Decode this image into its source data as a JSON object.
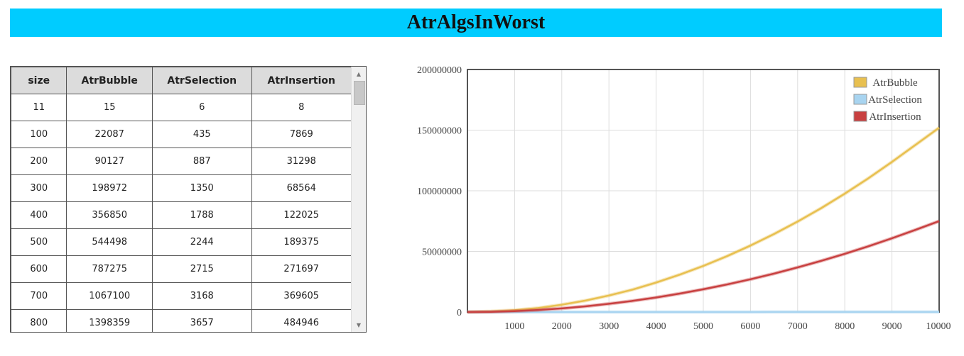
{
  "page": {
    "title": "AtrAlgsInWorst"
  },
  "table": {
    "headers": [
      "size",
      "AtrBubble",
      "AtrSelection",
      "AtrInsertion"
    ],
    "rows": [
      [
        "11",
        "15",
        "6",
        "8"
      ],
      [
        "100",
        "22087",
        "435",
        "7869"
      ],
      [
        "200",
        "90127",
        "887",
        "31298"
      ],
      [
        "300",
        "198972",
        "1350",
        "68564"
      ],
      [
        "400",
        "356850",
        "1788",
        "122025"
      ],
      [
        "500",
        "544498",
        "2244",
        "189375"
      ],
      [
        "600",
        "787275",
        "2715",
        "271697"
      ],
      [
        "700",
        "1067100",
        "3168",
        "369605"
      ],
      [
        "800",
        "1398359",
        "3657",
        "484946"
      ]
    ],
    "scroll_up_icon": "triangle-up",
    "scroll_down_icon": "triangle-down"
  },
  "chart_data": {
    "type": "line",
    "title": "",
    "xlabel": "",
    "ylabel": "",
    "xlim": [
      0,
      10000
    ],
    "ylim": [
      0,
      200000000
    ],
    "xticks": [
      1000,
      2000,
      3000,
      4000,
      5000,
      6000,
      7000,
      8000,
      9000,
      10000
    ],
    "yticks": [
      0,
      50000000,
      100000000,
      150000000,
      200000000
    ],
    "grid": true,
    "legend_position": "top-right",
    "x": [
      0,
      500,
      1000,
      1500,
      2000,
      2500,
      3000,
      3500,
      4000,
      4500,
      5000,
      5500,
      6000,
      6500,
      7000,
      7500,
      8000,
      8500,
      9000,
      9500,
      10000
    ],
    "series": [
      {
        "name": "AtrBubble",
        "color": "#e8c050",
        "values": [
          0,
          500000,
          1500000,
          3300000,
          6000000,
          9400000,
          13600000,
          18500000,
          24300000,
          30800000,
          38000000,
          46000000,
          54800000,
          64300000,
          74600000,
          85700000,
          97600000,
          110300000,
          123800000,
          137900000,
          152000000
        ]
      },
      {
        "name": "AtrSelection",
        "color": "#a8d4f0",
        "values": [
          0,
          2200,
          4500,
          6800,
          9100,
          11400,
          13700,
          16000,
          18200,
          20500,
          22800,
          25100,
          27400,
          29700,
          32000,
          34300,
          36600,
          38900,
          41200,
          43500,
          45800
        ]
      },
      {
        "name": "AtrInsertion",
        "color": "#c84040",
        "values": [
          0,
          190000,
          760000,
          1700000,
          3000000,
          4700000,
          6800000,
          9200000,
          12000000,
          15200000,
          18800000,
          22700000,
          27000000,
          31700000,
          36800000,
          42200000,
          48000000,
          54200000,
          60800000,
          67800000,
          75000000
        ]
      }
    ]
  }
}
